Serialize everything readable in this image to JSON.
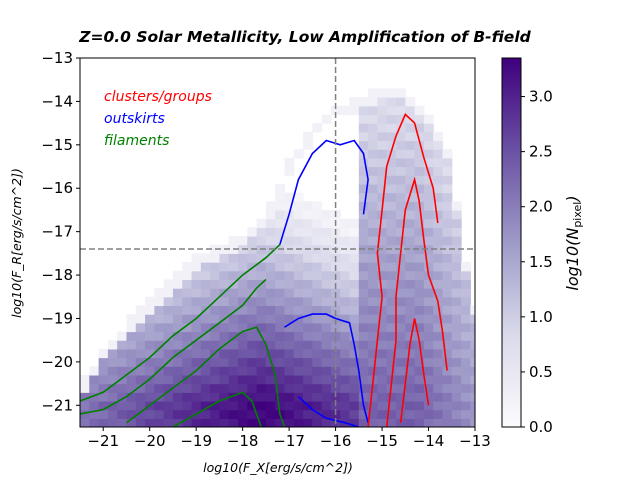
{
  "chart_data": {
    "type": "heatmap",
    "title": "Z=0.0 Solar Metallicity,   Low Amplification of B-field",
    "xlabel": "log10(F_X[erg/s/cm^2])",
    "ylabel": "log10(F_R[erg/s/cm^2])",
    "xlim": [
      -21.5,
      -13
    ],
    "ylim": [
      -21.5,
      -13
    ],
    "xticks": [
      -21,
      -20,
      -19,
      -18,
      -17,
      -16,
      -15,
      -14,
      -13
    ],
    "yticks": [
      -21,
      -20,
      -19,
      -18,
      -17,
      -16,
      -15,
      -14,
      -13
    ],
    "xtick_labels": [
      "−21",
      "−20",
      "−19",
      "−18",
      "−17",
      "−16",
      "−15",
      "−14",
      "−13"
    ],
    "ytick_labels": [
      "−21",
      "−20",
      "−19",
      "−18",
      "−17",
      "−16",
      "−15",
      "−14",
      "−13"
    ],
    "reference_lines": {
      "vertical_x": -16.0,
      "horizontal_y": -17.4,
      "style": "dashed",
      "color": "#808080"
    },
    "legend": [
      {
        "label": "clusters/groups",
        "color": "#ff0000"
      },
      {
        "label": "outskirts",
        "color": "#0000ff"
      },
      {
        "label": "filaments",
        "color": "#008000"
      }
    ],
    "colorbar": {
      "label_main": "log10(N",
      "label_sub": "pixel",
      "label_close": ")",
      "min": 0.0,
      "max": 3.35,
      "ticks": [
        0.0,
        0.5,
        1.0,
        1.5,
        2.0,
        2.5,
        3.0
      ],
      "tick_labels": [
        "0.0",
        "0.5",
        "1.0",
        "1.5",
        "2.0",
        "2.5",
        "3.0"
      ],
      "colormap": [
        "#fcfbfd",
        "#dadaeb",
        "#9e9ac8",
        "#6a51a3",
        "#3f007d"
      ]
    },
    "contours": {
      "filaments": [
        [
          [
            -21.5,
            -20.9
          ],
          [
            -21.0,
            -20.7
          ],
          [
            -20.5,
            -20.3
          ],
          [
            -20.0,
            -19.9
          ],
          [
            -19.5,
            -19.4
          ],
          [
            -19.0,
            -19.0
          ],
          [
            -18.5,
            -18.5
          ],
          [
            -18.0,
            -18.0
          ],
          [
            -17.5,
            -17.6
          ],
          [
            -17.2,
            -17.3
          ]
        ],
        [
          [
            -21.5,
            -21.2
          ],
          [
            -21.0,
            -21.1
          ],
          [
            -20.5,
            -20.8
          ],
          [
            -20.0,
            -20.4
          ],
          [
            -19.5,
            -19.9
          ],
          [
            -19.0,
            -19.5
          ],
          [
            -18.5,
            -19.1
          ],
          [
            -18.0,
            -18.7
          ],
          [
            -17.7,
            -18.3
          ],
          [
            -17.5,
            -18.1
          ]
        ],
        [
          [
            -20.5,
            -21.4
          ],
          [
            -20.0,
            -21.0
          ],
          [
            -19.5,
            -20.6
          ],
          [
            -19.0,
            -20.2
          ],
          [
            -18.5,
            -19.7
          ],
          [
            -18.0,
            -19.3
          ],
          [
            -17.7,
            -19.2
          ],
          [
            -17.5,
            -19.6
          ],
          [
            -17.3,
            -20.3
          ],
          [
            -17.2,
            -21.2
          ],
          [
            -17.1,
            -21.5
          ]
        ],
        [
          [
            -19.5,
            -21.5
          ],
          [
            -19.0,
            -21.2
          ],
          [
            -18.5,
            -20.9
          ],
          [
            -18.0,
            -20.7
          ],
          [
            -17.8,
            -20.9
          ],
          [
            -17.6,
            -21.5
          ]
        ]
      ],
      "outskirts": [
        [
          [
            -17.2,
            -17.3
          ],
          [
            -17.0,
            -16.6
          ],
          [
            -16.8,
            -15.8
          ],
          [
            -16.5,
            -15.2
          ],
          [
            -16.2,
            -14.9
          ],
          [
            -15.9,
            -15.0
          ],
          [
            -15.6,
            -14.9
          ],
          [
            -15.4,
            -15.2
          ],
          [
            -15.3,
            -15.8
          ],
          [
            -15.4,
            -16.6
          ]
        ],
        [
          [
            -17.1,
            -19.2
          ],
          [
            -16.8,
            -19.0
          ],
          [
            -16.5,
            -18.9
          ],
          [
            -16.2,
            -18.9
          ],
          [
            -16.0,
            -19.0
          ],
          [
            -15.7,
            -19.1
          ],
          [
            -15.6,
            -19.6
          ],
          [
            -15.5,
            -20.2
          ],
          [
            -15.4,
            -21.0
          ],
          [
            -15.3,
            -21.4
          ]
        ],
        [
          [
            -16.8,
            -20.8
          ],
          [
            -16.5,
            -21.1
          ],
          [
            -16.2,
            -21.3
          ],
          [
            -15.8,
            -21.4
          ],
          [
            -15.5,
            -21.5
          ]
        ]
      ],
      "clusters": [
        [
          [
            -15.3,
            -21.5
          ],
          [
            -15.2,
            -20.5
          ],
          [
            -15.1,
            -19.5
          ],
          [
            -15.0,
            -18.5
          ],
          [
            -15.1,
            -17.5
          ],
          [
            -15.0,
            -16.5
          ],
          [
            -14.9,
            -15.5
          ],
          [
            -14.7,
            -14.8
          ],
          [
            -14.5,
            -14.3
          ],
          [
            -14.3,
            -14.5
          ],
          [
            -14.1,
            -15.3
          ],
          [
            -13.9,
            -16.0
          ],
          [
            -13.8,
            -16.8
          ]
        ],
        [
          [
            -14.9,
            -21.5
          ],
          [
            -14.8,
            -20.5
          ],
          [
            -14.7,
            -19.5
          ],
          [
            -14.7,
            -18.5
          ],
          [
            -14.6,
            -17.5
          ],
          [
            -14.5,
            -16.5
          ],
          [
            -14.3,
            -15.8
          ],
          [
            -14.2,
            -16.3
          ],
          [
            -14.1,
            -17.2
          ],
          [
            -14.0,
            -18.0
          ],
          [
            -13.8,
            -18.6
          ],
          [
            -13.7,
            -19.3
          ],
          [
            -13.6,
            -20.2
          ]
        ],
        [
          [
            -14.6,
            -21.4
          ],
          [
            -14.5,
            -20.5
          ],
          [
            -14.4,
            -19.6
          ],
          [
            -14.3,
            -19.0
          ],
          [
            -14.2,
            -19.5
          ],
          [
            -14.1,
            -20.3
          ],
          [
            -14.0,
            -21.0
          ]
        ]
      ]
    }
  }
}
